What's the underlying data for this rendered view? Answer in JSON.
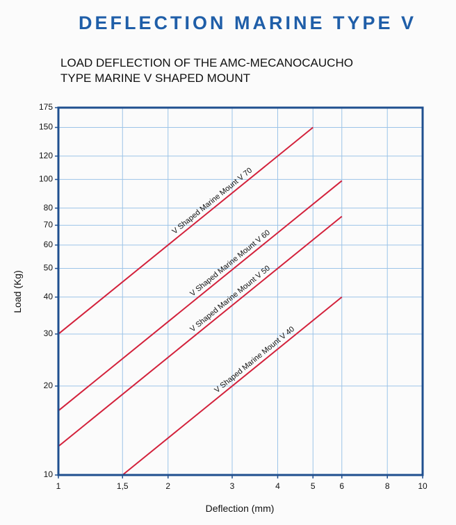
{
  "chart_data": {
    "type": "line",
    "title": "DEFLECTION MARINE TYPE V",
    "subtitle": [
      "LOAD DEFLECTION  OF THE AMC-MECANOCAUCHO",
      "TYPE MARINE V SHAPED MOUNT"
    ],
    "xlabel": "Deflection (mm)",
    "ylabel": "Load (Kg)",
    "xscale": "log",
    "yscale": "log",
    "grid": true,
    "xlim": [
      1,
      10
    ],
    "ylim": [
      10,
      175
    ],
    "xticks": [
      1,
      {
        "value": 1.5,
        "label": "1,5"
      },
      2,
      3,
      4,
      5,
      6,
      8,
      10
    ],
    "yticks": [
      10,
      20,
      30,
      40,
      50,
      60,
      70,
      80,
      100,
      120,
      150,
      175
    ],
    "series": [
      {
        "name": "V Shaped Marine Mount V 70",
        "color": "#d3213b",
        "x": [
          1,
          5
        ],
        "values": [
          30,
          150
        ]
      },
      {
        "name": "V Shaped Marine Mount V 60",
        "color": "#d3213b",
        "x": [
          1,
          6
        ],
        "values": [
          16.5,
          99
        ]
      },
      {
        "name": "V Shaped Marine Mount V 50",
        "color": "#d3213b",
        "x": [
          1,
          6
        ],
        "values": [
          12.5,
          75
        ]
      },
      {
        "name": "V Shaped Marine Mount V 40",
        "color": "#d3213b",
        "x": [
          1.5,
          6
        ],
        "values": [
          10,
          40
        ]
      }
    ]
  }
}
